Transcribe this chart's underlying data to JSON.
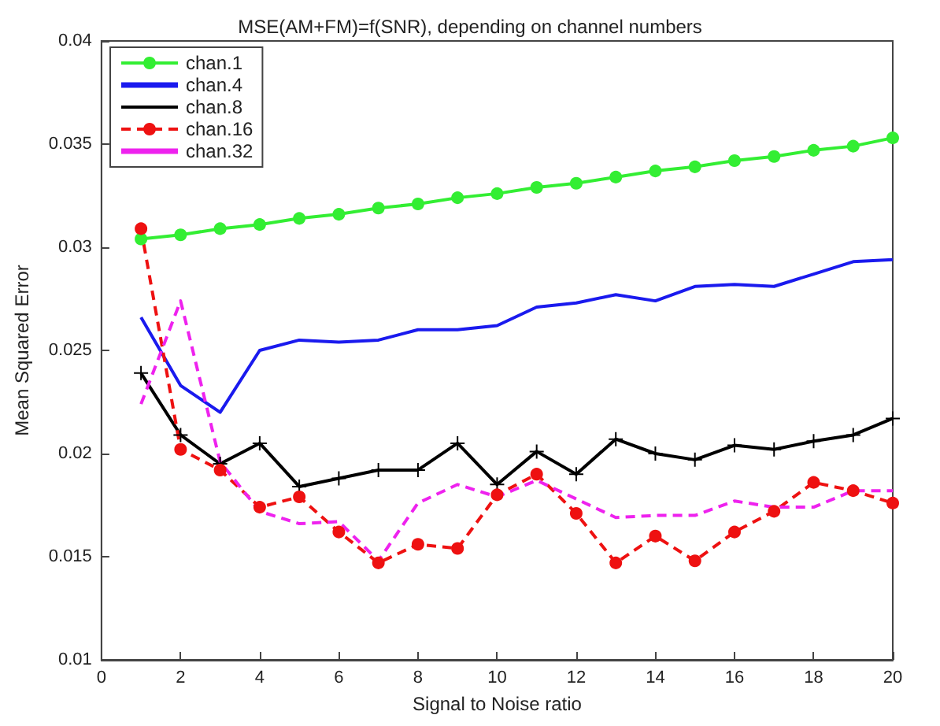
{
  "chart_data": {
    "type": "line",
    "title": "MSE(AM+FM)=f(SNR), depending on channel numbers",
    "xlabel": "Signal to Noise ratio",
    "ylabel": "Mean Squared Error",
    "x": [
      1,
      2,
      3,
      4,
      5,
      6,
      7,
      8,
      9,
      10,
      11,
      12,
      13,
      14,
      15,
      16,
      17,
      18,
      19,
      20
    ],
    "xlim": [
      0,
      20
    ],
    "xticks": [
      0,
      2,
      4,
      6,
      8,
      10,
      12,
      14,
      16,
      18,
      20
    ],
    "ylim": [
      0.01,
      0.04
    ],
    "yticks": [
      0.01,
      0.015,
      0.02,
      0.025,
      0.03,
      0.035,
      0.04
    ],
    "grid": false,
    "legend": "top left",
    "series": [
      {
        "name": "chan.1",
        "color": "#33ee33",
        "marker": "circle",
        "line_style": "solid",
        "values": [
          0.0304,
          0.0306,
          0.0309,
          0.0311,
          0.0314,
          0.0316,
          0.0319,
          0.0321,
          0.0324,
          0.0326,
          0.0329,
          0.0331,
          0.0334,
          0.0337,
          0.0339,
          0.0342,
          0.0344,
          0.0347,
          0.0349,
          0.0353
        ]
      },
      {
        "name": "chan.4",
        "color": "#1a1aee",
        "marker": "none",
        "line_style": "solid",
        "values": [
          0.0266,
          0.0233,
          0.022,
          0.025,
          0.0255,
          0.0254,
          0.0255,
          0.026,
          0.026,
          0.0262,
          0.0271,
          0.0273,
          0.0277,
          0.0274,
          0.0281,
          0.0282,
          0.0281,
          0.0287,
          0.0293,
          0.0294
        ]
      },
      {
        "name": "chan.8",
        "color": "#000000",
        "marker": "cross",
        "line_style": "solid",
        "values": [
          0.0239,
          0.0209,
          0.0195,
          0.0205,
          0.0184,
          0.0188,
          0.0192,
          0.0192,
          0.0205,
          0.0185,
          0.0201,
          0.019,
          0.0207,
          0.02,
          0.0197,
          0.0204,
          0.0202,
          0.0206,
          0.0209,
          0.0217
        ]
      },
      {
        "name": "chan.16",
        "color": "#ee1111",
        "marker": "circle",
        "line_style": "dashed",
        "values": [
          0.0309,
          0.0202,
          0.0192,
          0.0174,
          0.0179,
          0.0162,
          0.0147,
          0.0156,
          0.0154,
          0.018,
          0.019,
          0.0171,
          0.0147,
          0.016,
          0.0148,
          0.0162,
          0.0172,
          0.0186,
          0.0182,
          0.0176
        ]
      },
      {
        "name": "chan.32",
        "color": "#ee22ee",
        "marker": "none",
        "line_style": "dashed",
        "values": [
          0.0224,
          0.0274,
          0.0196,
          0.0172,
          0.0166,
          0.0167,
          0.0148,
          0.0176,
          0.0185,
          0.0179,
          0.0187,
          0.0178,
          0.0169,
          0.017,
          0.017,
          0.0177,
          0.0174,
          0.0174,
          0.0182,
          0.0182
        ]
      }
    ]
  }
}
